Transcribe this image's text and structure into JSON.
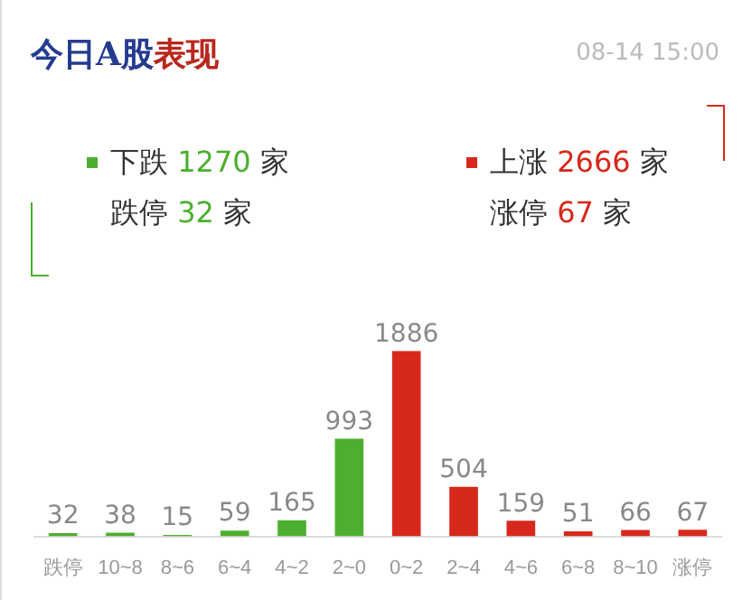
{
  "chart_data": {
    "type": "bar",
    "title": "今日A股表现",
    "subtitle": "08-14 15:00",
    "annotations": [
      "下跌 1270 家",
      "跌停 32 家",
      "上涨 2666 家",
      "涨停 67 家"
    ],
    "categories": [
      "跌停",
      "10~8",
      "8~6",
      "6~4",
      "4~2",
      "2~0",
      "0~2",
      "2~4",
      "4~6",
      "6~8",
      "8~10",
      "涨停"
    ],
    "values": [
      32,
      38,
      15,
      59,
      165,
      993,
      1886,
      504,
      159,
      51,
      66,
      67
    ],
    "colors": [
      "#4caf2f",
      "#4caf2f",
      "#4caf2f",
      "#4caf2f",
      "#4caf2f",
      "#4caf2f",
      "#d7281c",
      "#d7281c",
      "#d7281c",
      "#d7281c",
      "#d7281c",
      "#d7281c"
    ],
    "data_labels": true,
    "legend": false
  }
}
